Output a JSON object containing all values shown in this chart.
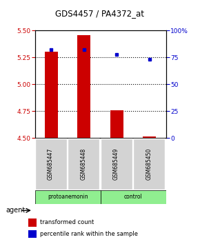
{
  "title": "GDS4457 / PA4372_at",
  "samples": [
    "GSM685447",
    "GSM685448",
    "GSM685449",
    "GSM685450"
  ],
  "red_values": [
    5.305,
    5.455,
    4.755,
    4.51
  ],
  "blue_percentiles": [
    82,
    82,
    78,
    73
  ],
  "ylim_left": [
    4.5,
    5.5
  ],
  "ylim_right": [
    0,
    100
  ],
  "yticks_left": [
    4.5,
    4.75,
    5.0,
    5.25,
    5.5
  ],
  "yticks_right": [
    0,
    25,
    50,
    75,
    100
  ],
  "grid_ticks": [
    4.75,
    5.0,
    5.25
  ],
  "agent_label": "agent",
  "bar_color": "#cc0000",
  "dot_color": "#0000cc",
  "bar_width": 0.4,
  "baseline": 4.5,
  "background_plot": "#ffffff",
  "background_labels": "#d3d3d3",
  "green_color": "#90EE90",
  "legend_red": "transformed count",
  "legend_blue": "percentile rank within the sample"
}
